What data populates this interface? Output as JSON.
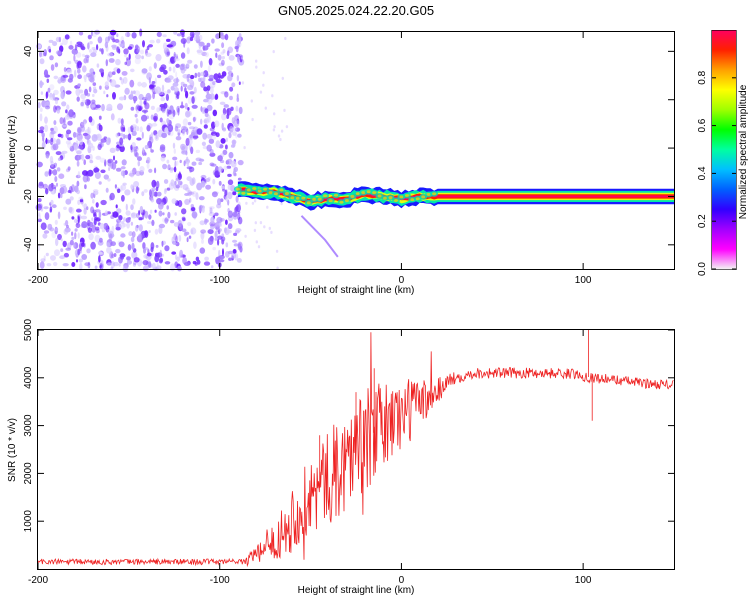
{
  "figure_title": "GN05.2025.024.22.20.G05",
  "colors": {
    "snr_line": "#ee2222",
    "frame": "#000000",
    "colorbar_stops": [
      "#f2f2f2",
      "#ff00ff",
      "#a000ff",
      "#3000ff",
      "#0060ff",
      "#00c0ff",
      "#00ffa0",
      "#00ff00",
      "#a0ff00",
      "#ffff00",
      "#ffa000",
      "#ff2000",
      "#ff0060"
    ]
  },
  "chart_data": [
    {
      "type": "heatmap",
      "title": "",
      "xlabel": "Height of straight line (km)",
      "ylabel": "Frequency (Hz)",
      "xlim": [
        -200,
        150
      ],
      "ylim": [
        -50,
        48
      ],
      "x_ticks": [
        -200,
        -100,
        0,
        100
      ],
      "y_ticks": [
        -40,
        -20,
        0,
        20,
        40
      ],
      "noise_region_x": [
        -200,
        -88
      ],
      "signal_band": {
        "x_start": -90,
        "x_end": 150,
        "center_track": [
          [
            -90,
            -17
          ],
          [
            -80,
            -18
          ],
          [
            -70,
            -18
          ],
          [
            -60,
            -20
          ],
          [
            -50,
            -22
          ],
          [
            -40,
            -21
          ],
          [
            -30,
            -21
          ],
          [
            -20,
            -19
          ],
          [
            -10,
            -20
          ],
          [
            0,
            -21
          ],
          [
            10,
            -20
          ],
          [
            20,
            -20
          ],
          [
            150,
            -20
          ]
        ],
        "half_width_hz": 2
      },
      "colorbar": {
        "label": "Normalized spectral amplitude",
        "ticks": [
          0.0,
          0.2,
          0.4,
          0.6,
          0.8
        ],
        "range": [
          0,
          1
        ]
      }
    },
    {
      "type": "line",
      "title": "",
      "xlabel": "Height of straight line (km)",
      "ylabel": "SNR (10 * v/v)",
      "xlim": [
        -200,
        150
      ],
      "ylim": [
        0,
        5000
      ],
      "x_ticks": [
        -200,
        -100,
        0,
        100
      ],
      "y_ticks": [
        1000,
        2000,
        3000,
        4000,
        5000
      ],
      "series": [
        {
          "envelope": [
            [
              -200,
              150
            ],
            [
              -150,
              150
            ],
            [
              -100,
              150
            ],
            [
              -85,
              180
            ],
            [
              -75,
              400
            ],
            [
              -65,
              800
            ],
            [
              -55,
              1300
            ],
            [
              -45,
              1700
            ],
            [
              -35,
              2100
            ],
            [
              -25,
              2500
            ],
            [
              -15,
              2850
            ],
            [
              -5,
              3100
            ],
            [
              5,
              3350
            ],
            [
              15,
              3600
            ],
            [
              20,
              3750
            ],
            [
              25,
              3900
            ],
            [
              30,
              4000
            ],
            [
              40,
              4100
            ],
            [
              60,
              4100
            ],
            [
              80,
              4100
            ],
            [
              95,
              4080
            ],
            [
              105,
              4000
            ],
            [
              120,
              3950
            ],
            [
              135,
              3880
            ],
            [
              150,
              3850
            ]
          ],
          "noise_amplitude": [
            [
              -200,
              60
            ],
            [
              -90,
              60
            ],
            [
              -75,
              250
            ],
            [
              -60,
              700
            ],
            [
              -40,
              1000
            ],
            [
              -20,
              1100
            ],
            [
              0,
              800
            ],
            [
              20,
              300
            ],
            [
              30,
              120
            ],
            [
              150,
              100
            ]
          ],
          "spikes": [
            [
              -45,
              2800
            ],
            [
              -25,
              3700
            ],
            [
              -15,
              4200
            ],
            [
              103,
              5000
            ],
            [
              105,
              3100
            ]
          ]
        }
      ]
    }
  ]
}
